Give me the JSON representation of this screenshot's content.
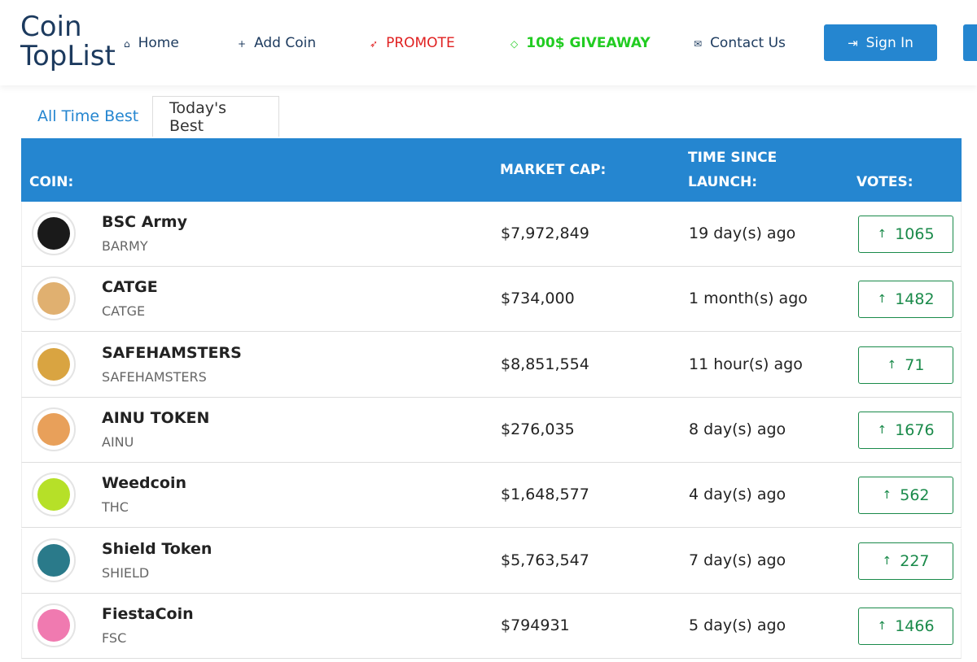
{
  "header": {
    "logo": [
      "Coin",
      "TopList"
    ],
    "nav": [
      "Home",
      "Add Coin",
      "PROMOTE",
      "100$ GIVEAWAY",
      "Contact Us"
    ],
    "sign_in": "Sign In"
  },
  "tabs": [
    "All Time Best",
    "Today's Best"
  ],
  "table": {
    "columns": [
      "COIN:",
      "MARKET CAP:",
      "TIME SINCE LAUNCH:",
      "VOTES:"
    ],
    "rows": [
      {
        "name": "BSC Army",
        "symbol": "BARMY",
        "market_cap": "$7,972,849",
        "launched": "19 day(s) ago",
        "votes": 1065
      },
      {
        "name": "CATGE",
        "symbol": "CATGE",
        "market_cap": "$734,000",
        "launched": "1 month(s) ago",
        "votes": 1482
      },
      {
        "name": "SAFEHAMSTERS",
        "symbol": "SAFEHAMSTERS",
        "market_cap": "$8,851,554",
        "launched": "11 hour(s) ago",
        "votes": 71
      },
      {
        "name": "AINU TOKEN",
        "symbol": "AINU",
        "market_cap": "$276,035",
        "launched": "8 day(s) ago",
        "votes": 1676
      },
      {
        "name": "Weedcoin",
        "symbol": "THC",
        "market_cap": "$1,648,577",
        "launched": "4 day(s) ago",
        "votes": 562
      },
      {
        "name": "Shield Token",
        "symbol": "SHIELD",
        "market_cap": "$5,763,547",
        "launched": "7 day(s) ago",
        "votes": 227
      },
      {
        "name": "FiestaCoin",
        "symbol": "FSC",
        "market_cap": "$794931",
        "launched": "5 day(s) ago",
        "votes": 1466
      }
    ]
  }
}
